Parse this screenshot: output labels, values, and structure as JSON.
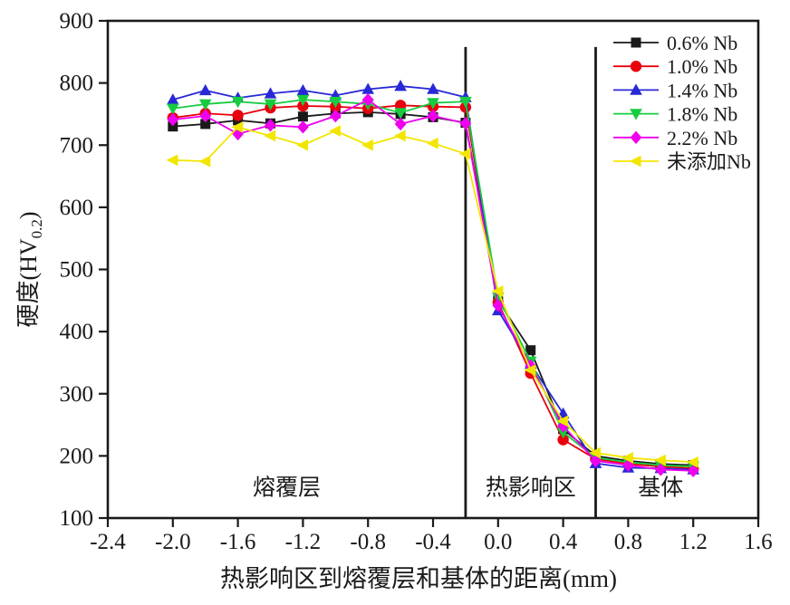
{
  "figure": {
    "background": "#ffffff"
  },
  "chart_data": {
    "type": "line",
    "title": "",
    "xlabel": "热影响区到熔覆层和基体的距离(mm)",
    "ylabel_prefix": "硬度(HV",
    "ylabel_sub": "0.2",
    "ylabel_suffix": ")",
    "xlim": [
      -2.4,
      1.6
    ],
    "ylim": [
      100,
      900
    ],
    "grid": false,
    "axis_color": "#1a1a1a",
    "x_tick_labels": [
      "-2.4",
      "-2.0",
      "-1.6",
      "-1.2",
      "-0.8",
      "-0.4",
      "0.0",
      "0.4",
      "0.8",
      "1.2",
      "1.6"
    ],
    "x_tick_values": [
      -2.4,
      -2.0,
      -1.6,
      -1.2,
      -0.8,
      -0.4,
      0.0,
      0.4,
      0.8,
      1.2,
      1.6
    ],
    "y_tick_labels": [
      "100",
      "200",
      "300",
      "400",
      "500",
      "600",
      "700",
      "800",
      "900"
    ],
    "y_tick_values": [
      100,
      200,
      300,
      400,
      500,
      600,
      700,
      800,
      900
    ],
    "x": [
      -2.0,
      -1.8,
      -1.6,
      -1.4,
      -1.2,
      -1.0,
      -0.8,
      -0.6,
      -0.4,
      -0.2,
      0.0,
      0.2,
      0.4,
      0.6,
      0.8,
      1.0,
      1.2
    ],
    "series": [
      {
        "name": "0.6% Nb",
        "color": "#1a1a1a",
        "marker": "square",
        "values": [
          730,
          734,
          740,
          735,
          746,
          751,
          753,
          750,
          745,
          736,
          450,
          370,
          243,
          200,
          192,
          187,
          185
        ]
      },
      {
        "name": "1.0% Nb",
        "color": "#e8000d",
        "marker": "circle",
        "values": [
          744,
          751,
          748,
          760,
          763,
          762,
          759,
          764,
          762,
          761,
          447,
          333,
          226,
          195,
          187,
          183,
          180
        ]
      },
      {
        "name": "1.4% Nb",
        "color": "#2828d8",
        "marker": "triangle-up",
        "values": [
          773,
          788,
          776,
          783,
          788,
          780,
          790,
          795,
          790,
          777,
          434,
          348,
          268,
          188,
          181,
          180,
          178
        ]
      },
      {
        "name": "1.8% Nb",
        "color": "#16cc3f",
        "marker": "triangle-down",
        "values": [
          759,
          766,
          770,
          766,
          773,
          770,
          766,
          752,
          768,
          770,
          455,
          352,
          238,
          197,
          190,
          185,
          183
        ]
      },
      {
        "name": "2.2% Nb",
        "color": "#ee00ee",
        "marker": "diamond",
        "values": [
          741,
          747,
          718,
          732,
          729,
          747,
          773,
          734,
          747,
          735,
          442,
          345,
          248,
          192,
          185,
          178,
          176
        ]
      },
      {
        "name": "未添加Nb",
        "color": "#f2e600",
        "marker": "triangle-left",
        "values": [
          676,
          674,
          729,
          715,
          700,
          723,
          700,
          715,
          703,
          686,
          465,
          338,
          256,
          205,
          197,
          193,
          190
        ]
      }
    ],
    "boundaries": [
      {
        "x": -0.2,
        "y_from": 100,
        "y_to": 858
      },
      {
        "x": 0.6,
        "y_from": 100,
        "y_to": 858
      }
    ],
    "region_labels": [
      {
        "text": "熔覆层",
        "x": -1.3,
        "y": 150
      },
      {
        "text": "热影响区",
        "x": 0.2,
        "y": 150
      },
      {
        "text": "基体",
        "x": 1.0,
        "y": 150
      }
    ],
    "legend": {
      "position": "top-right"
    }
  }
}
